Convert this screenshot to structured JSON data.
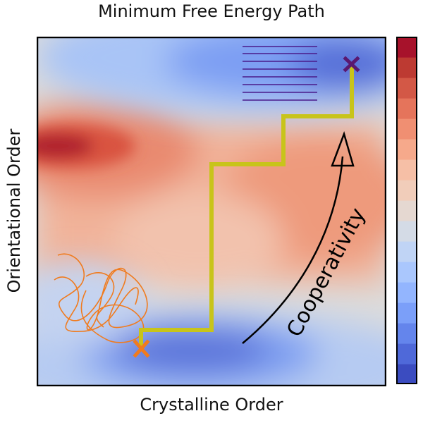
{
  "title": "Minimum Free Energy Path",
  "xlabel": "Crystalline Order",
  "ylabel": "Orientational Order",
  "annotation": "Cooperativity",
  "colors": {
    "path": "#c8c41a",
    "start_marker": "#f07b1e",
    "end_marker": "#5a1870",
    "polymer_coil": "#f07b1e",
    "lamellae": "#4a1a8a",
    "arrow": "#000000"
  },
  "colorbar": [
    "#3b4cc0",
    "#4f69d9",
    "#6485ec",
    "#7b9ff9",
    "#93b5fe",
    "#aac7fd",
    "#c0d4f5",
    "#d4dbe6",
    "#e5d8d1",
    "#f1cdba",
    "#f6bfa6",
    "#f6a98b",
    "#f08f72",
    "#e5745b",
    "#d35846",
    "#bd3a32",
    "#a7122b"
  ]
}
